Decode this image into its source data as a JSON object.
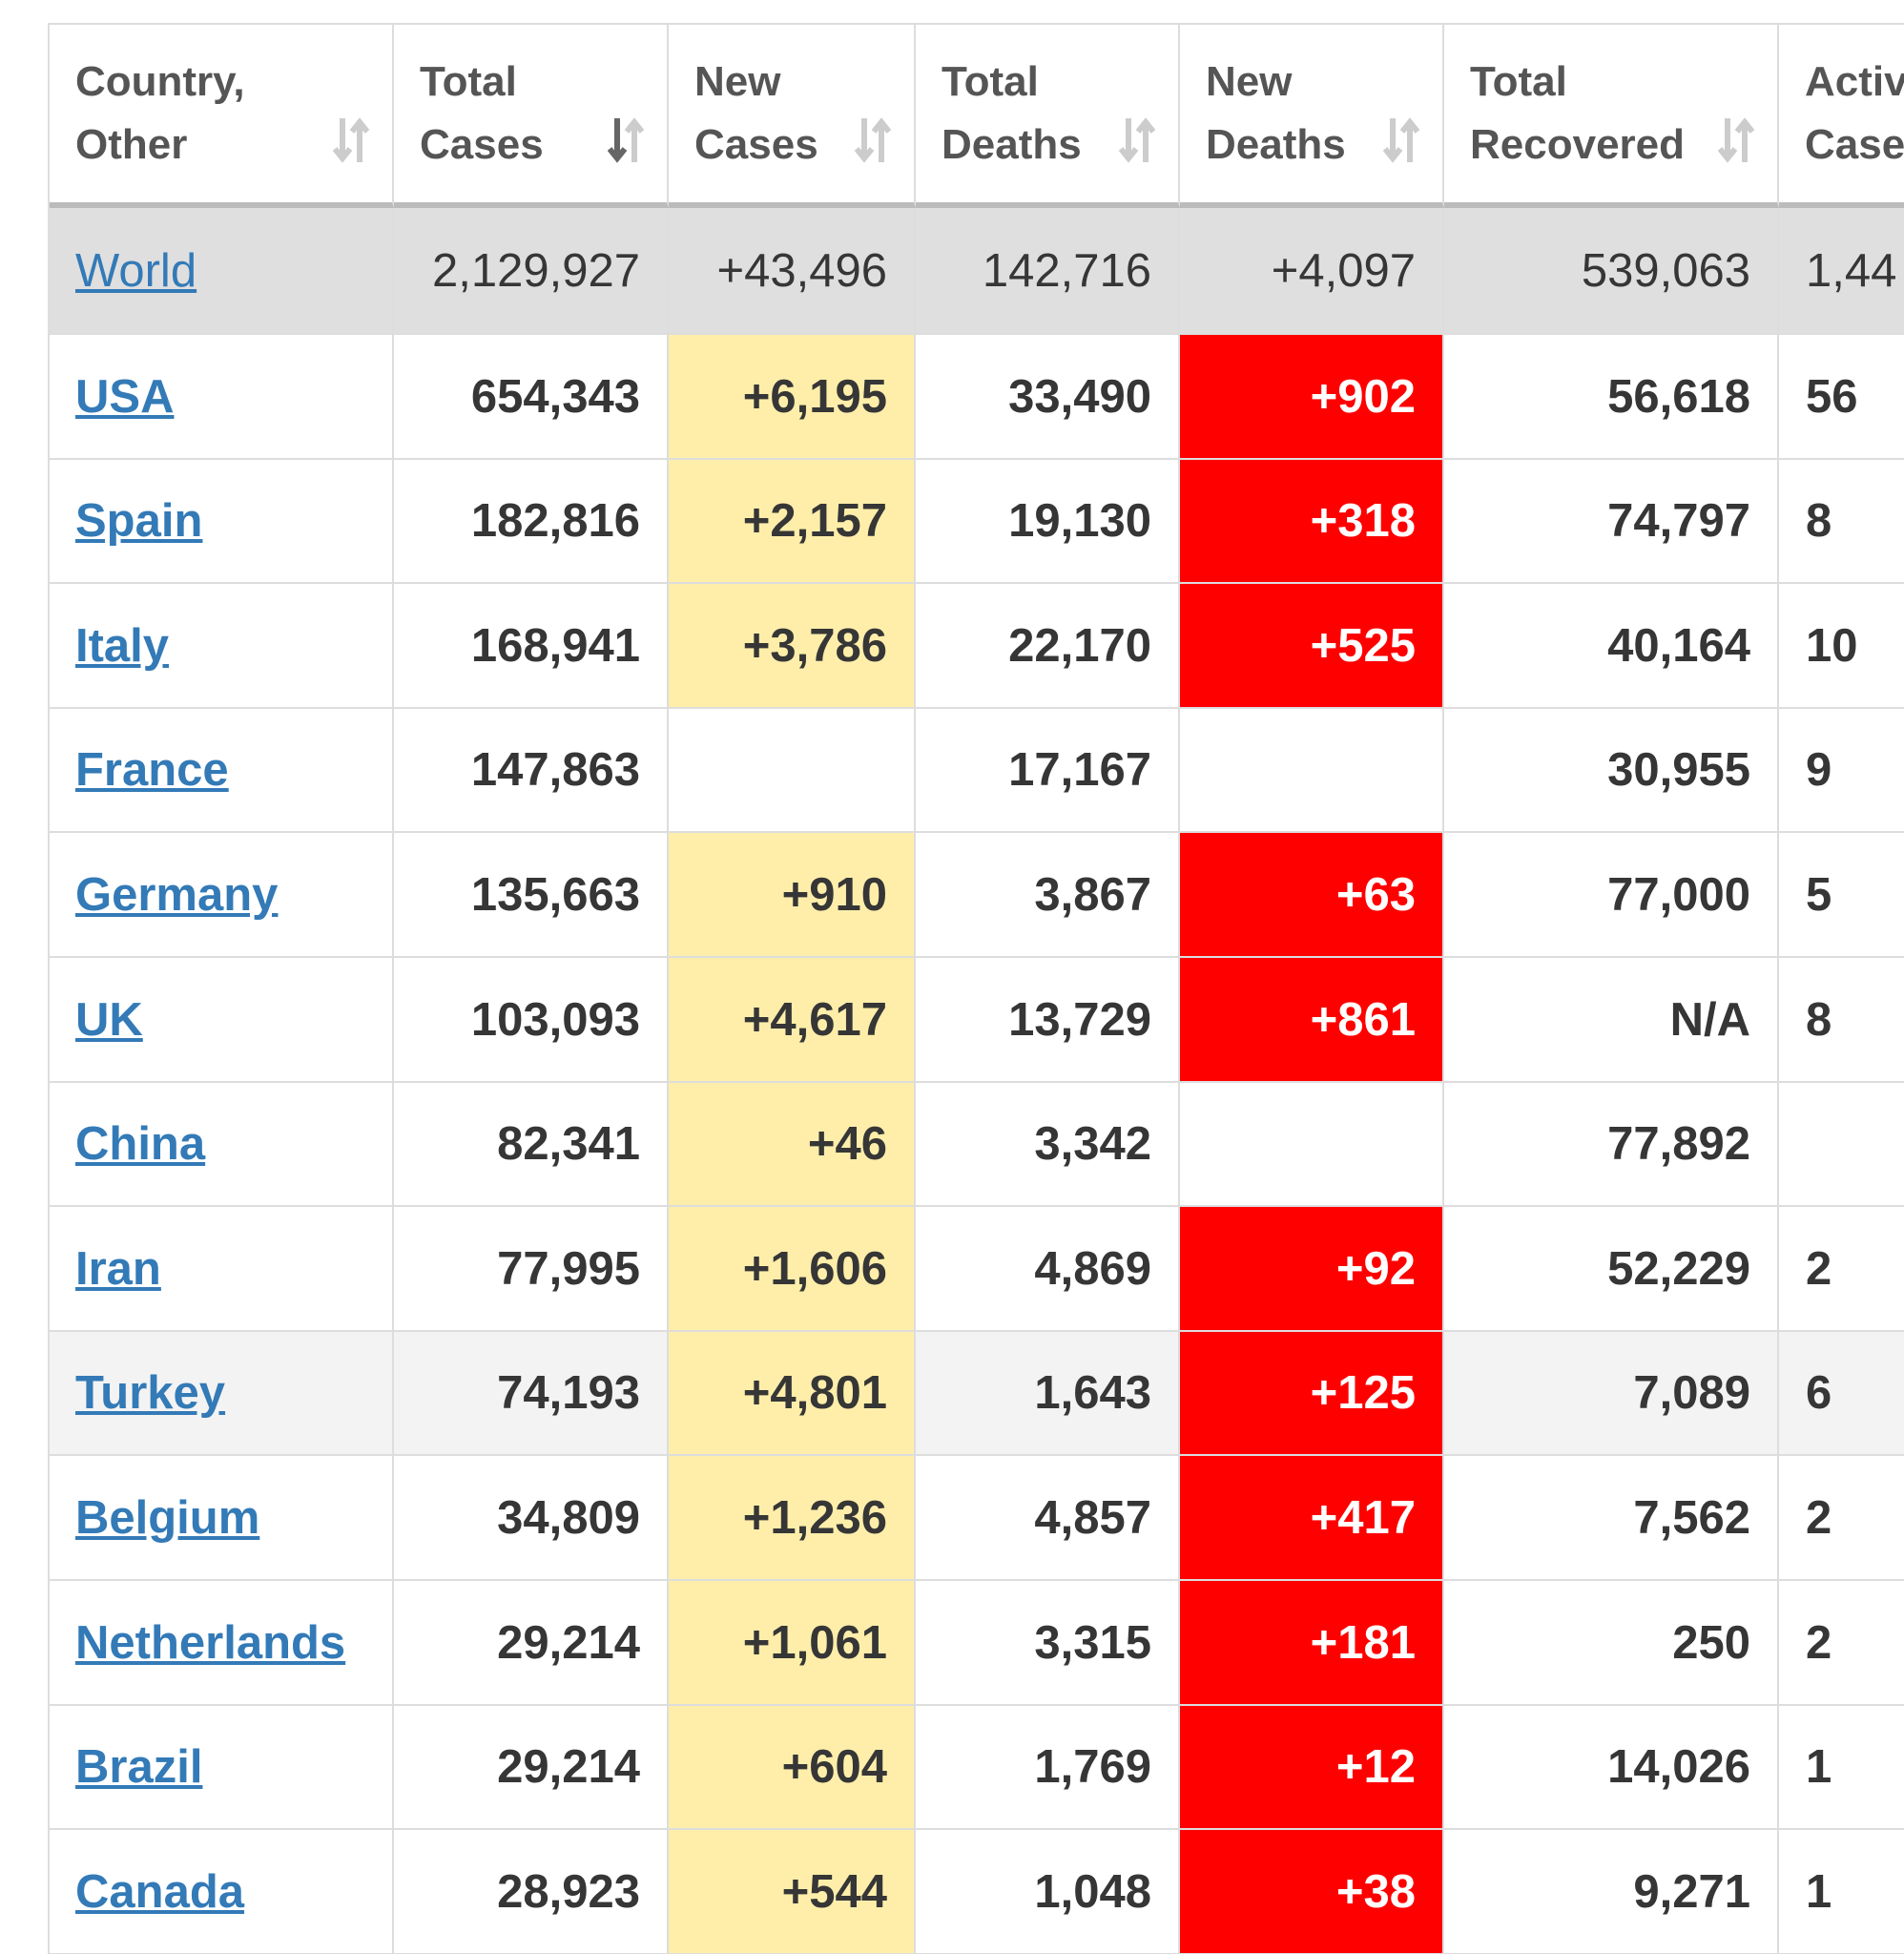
{
  "table": {
    "columns": [
      [
        "Country,",
        "Other"
      ],
      [
        "Total",
        "Cases"
      ],
      [
        "New",
        "Cases"
      ],
      [
        "Total",
        "Deaths"
      ],
      [
        "New",
        "Deaths"
      ],
      [
        "Total",
        "Recovered"
      ],
      [
        "Activ",
        "Case"
      ]
    ],
    "world": [
      "World",
      "2,129,927",
      "+43,496",
      "142,716",
      "+4,097",
      "539,063",
      "1,44"
    ],
    "rows": [
      [
        "USA",
        "654,343",
        "+6,195",
        "33,490",
        "+902",
        "56,618",
        "56"
      ],
      [
        "Spain",
        "182,816",
        "+2,157",
        "19,130",
        "+318",
        "74,797",
        "8"
      ],
      [
        "Italy",
        "168,941",
        "+3,786",
        "22,170",
        "+525",
        "40,164",
        "10"
      ],
      [
        "France",
        "147,863",
        null,
        "17,167",
        null,
        "30,955",
        "9"
      ],
      [
        "Germany",
        "135,663",
        "+910",
        "3,867",
        "+63",
        "77,000",
        "5"
      ],
      [
        "UK",
        "103,093",
        "+4,617",
        "13,729",
        "+861",
        "N/A",
        "8"
      ],
      [
        "China",
        "82,341",
        "+46",
        "3,342",
        null,
        "77,892",
        null
      ],
      [
        "Iran",
        "77,995",
        "+1,606",
        "4,869",
        "+92",
        "52,229",
        "2"
      ],
      [
        "Turkey",
        "74,193",
        "+4,801",
        "1,643",
        "+125",
        "7,089",
        "6"
      ],
      [
        "Belgium",
        "34,809",
        "+1,236",
        "4,857",
        "+417",
        "7,562",
        "2"
      ],
      [
        "Netherlands",
        "29,214",
        "+1,061",
        "3,315",
        "+181",
        "250",
        "2"
      ],
      [
        "Brazil",
        "29,214",
        "+604",
        "1,769",
        "+12",
        "14,026",
        "1"
      ],
      [
        "Canada",
        "28,923",
        "+544",
        "1,048",
        "+38",
        "9,271",
        "1"
      ]
    ]
  }
}
